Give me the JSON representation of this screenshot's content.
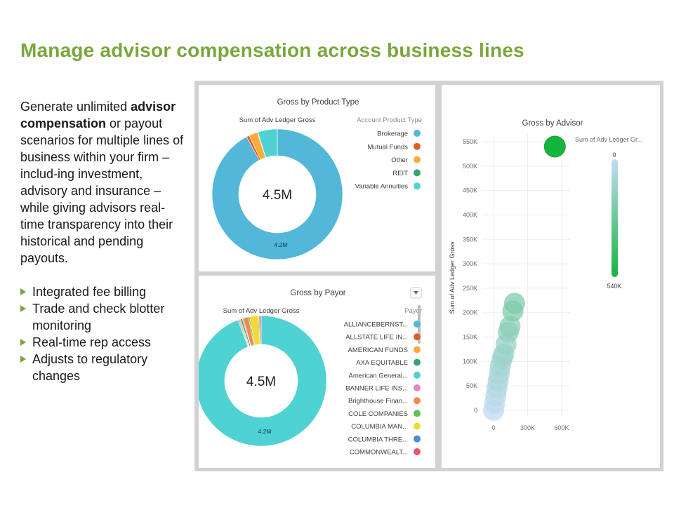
{
  "title": "Manage advisor compensation across business lines",
  "intro": {
    "before": "Generate unlimited ",
    "bold": "advisor compensation",
    "after": " or payout scenarios for multiple lines of business within your firm – includ-ing investment, advisory and insurance – while giving advisors real-time transparency into their historical and pending payouts."
  },
  "bullets": [
    "Integrated fee billing",
    "Trade and check blotter monitoring",
    "Real-time rep access",
    "Adjusts to regulatory changes"
  ],
  "chart_data": [
    {
      "type": "pie",
      "title": "Gross by Product Type",
      "subtitle": "Sum of Adv Ledger Gross",
      "legend_title": "Account Product Type",
      "center_label": "4.5M",
      "slice_label": "4.2M",
      "categories": [
        "Brokerage",
        "Mutual Funds",
        "Other",
        "REIT",
        "Variable Annuities"
      ],
      "values": [
        4.2,
        0.03,
        0.1,
        0.005,
        0.22
      ],
      "colors": [
        "#52b7d8",
        "#e15d29",
        "#ffac39",
        "#3ba173",
        "#4fd2d2"
      ]
    },
    {
      "type": "pie",
      "title": "Gross by Payor",
      "subtitle": "Sum of Adv Ledger Gross",
      "legend_title": "Payor",
      "center_label": "4.5M",
      "slice_label": "4.2M",
      "categories": [
        "ALLIANCEBERNST...",
        "ALLSTATE LIFE IN...",
        "AMERICAN FUNDS",
        "AXA EQUITABLE",
        "American General...",
        "BANNER LIFE INS...",
        "Brighthouse Finan...",
        "COLE COMPANIES",
        "COLUMBIA MAN...",
        "COLUMBIA THRE...",
        "COMMONWEALT..."
      ],
      "values": [
        0.01,
        0.01,
        0.01,
        0.02,
        4.2,
        0.01,
        0.06,
        0.015,
        0.1,
        0.01,
        0.015
      ],
      "colors": [
        "#52b7d8",
        "#e15d29",
        "#ffac39",
        "#3ba173",
        "#4fd2d2",
        "#e387bd",
        "#f2894e",
        "#5cc453",
        "#f3d932",
        "#4a8ed7",
        "#e3566e"
      ]
    },
    {
      "type": "scatter",
      "title": "Gross by Advisor",
      "ylabel": "Sum of Adv Ledger Gross",
      "xticks": [
        "0",
        "300K",
        "600K"
      ],
      "yticks": [
        "0",
        "50K",
        "100K",
        "150K",
        "200K",
        "250K",
        "300K",
        "350K",
        "400K",
        "450K",
        "500K",
        "550K"
      ],
      "xlim": [
        0,
        600000
      ],
      "ylim": [
        0,
        550000
      ],
      "color_legend": {
        "title": "Sum of Adv Ledger Gr...",
        "min_label": "0",
        "max_label": "540K",
        "min_color": "#c4daf3",
        "max_color": "#13b63c"
      },
      "points": [
        {
          "x": 0,
          "y": 0
        },
        {
          "x": 10000,
          "y": 15000
        },
        {
          "x": 20000,
          "y": 30000
        },
        {
          "x": 30000,
          "y": 45000
        },
        {
          "x": 40000,
          "y": 60000
        },
        {
          "x": 50000,
          "y": 75000
        },
        {
          "x": 60000,
          "y": 90000
        },
        {
          "x": 75000,
          "y": 105000
        },
        {
          "x": 90000,
          "y": 115000
        },
        {
          "x": 110000,
          "y": 135000
        },
        {
          "x": 130000,
          "y": 160000
        },
        {
          "x": 145000,
          "y": 172000
        },
        {
          "x": 170000,
          "y": 203000
        },
        {
          "x": 185000,
          "y": 219000
        },
        {
          "x": 540000,
          "y": 540000
        }
      ]
    }
  ]
}
